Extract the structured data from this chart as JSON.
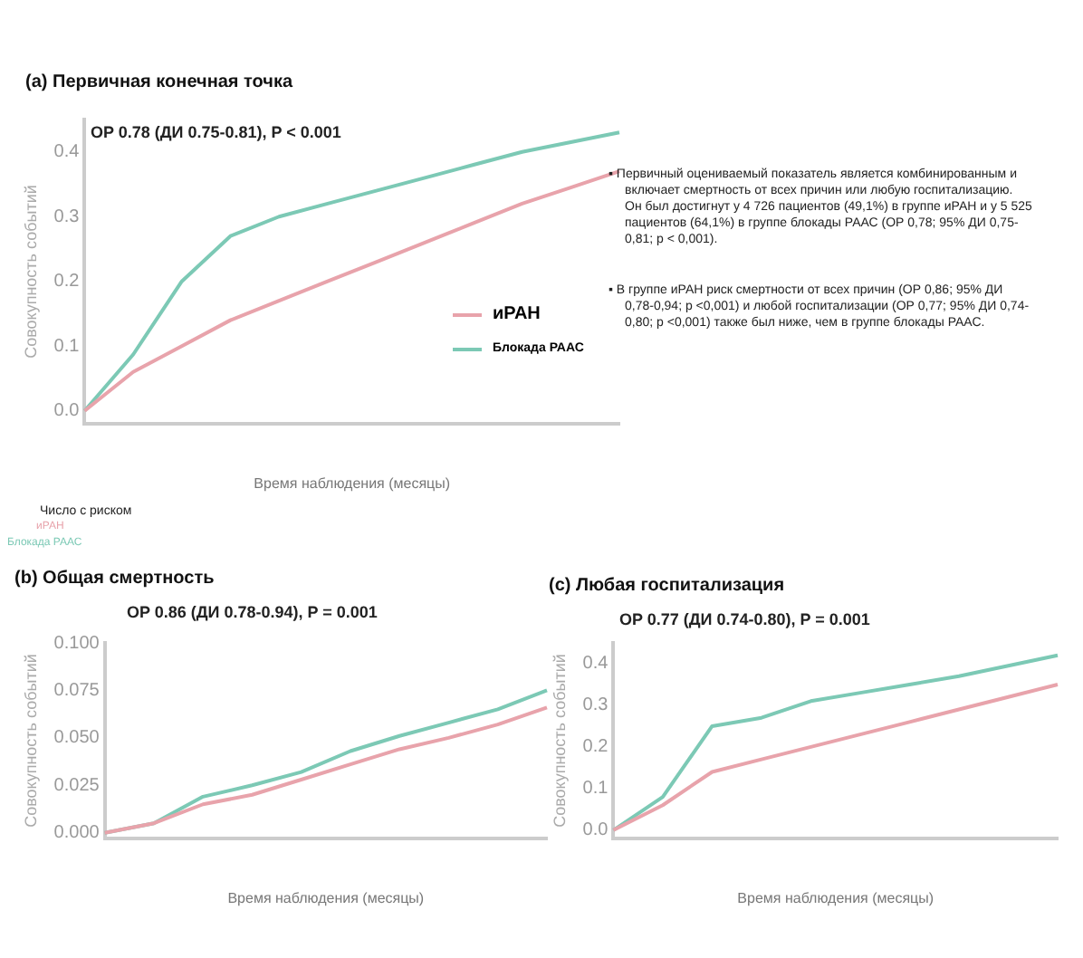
{
  "chart_data": [
    {
      "type": "line",
      "title": "(a)  Первичная конечная точка",
      "xlabel": "Время наблюдения (месяцы)",
      "ylabel": "Совокупность событий",
      "categories": [
        null,
        null,
        null,
        null,
        null,
        null,
        null,
        null,
        null,
        null,
        null,
        null
      ],
      "series": [
        {
          "name": "иРАН",
          "color": "#e8a3ab",
          "values": [
            0,
            0.06,
            0.1,
            0.14,
            0.17,
            0.2,
            0.23,
            0.26,
            0.29,
            0.32,
            0.345,
            0.37
          ]
        },
        {
          "name": "Блокада РААС",
          "color": "#7cc9b5",
          "values": [
            0,
            0.087,
            0.2,
            0.27,
            0.3,
            0.32,
            0.34,
            0.36,
            0.38,
            0.4,
            0.415,
            0.43
          ]
        }
      ],
      "ylim": [
        -0.02,
        0.45
      ],
      "yticks": [
        {
          "value": 0,
          "label": "0.0"
        },
        {
          "value": 0.1,
          "label": "0.1"
        },
        {
          "value": 0.2,
          "label": "0.2"
        },
        {
          "value": 0.3,
          "label": "0.3"
        },
        {
          "value": 0.4,
          "label": "0.4"
        }
      ],
      "grid": false,
      "legend": "right",
      "marker": "none",
      "line_style": "solid",
      "annotations": [
        "OP 0.78 (ДИ 0.75-0.81), P < 0.001",
        "▪ Первичный оцениваемый показатель является комбинированным и включает смертность от всех причин или любую госпитализацию. Он был достигнут у 4 726 пациентов (49,1%) в группе иРАН и у 5 525 пациентов (64,1%) в группе блокады РААС (ОР 0,78; 95% ДИ 0,75-0,81; p < 0,001).",
        "▪ В группе иРАН риск смертности от всех причин (ОР 0,86; 95% ДИ 0,78-0,94; p <0,001) и любой госпитализации (ОР 0,77; 95% ДИ 0,74-0,80; p <0,001) также был ниже, чем в группе блокады РААС.",
        "Число с риском",
        "иРАН",
        "Блокада РААС"
      ]
    },
    {
      "type": "line",
      "title": "(b) Общая смертность",
      "xlabel": "Время наблюдения (месяцы)",
      "ylabel": "Совокупность событий",
      "categories": [
        null,
        null,
        null,
        null,
        null,
        null,
        null,
        null,
        null,
        null
      ],
      "series": [
        {
          "color": "#e8a3ab",
          "values": [
            0,
            0.005,
            0.015,
            0.02,
            0.028,
            0.036,
            0.044,
            0.05,
            0.057,
            0.066
          ]
        },
        {
          "color": "#7cc9b5",
          "values": [
            0,
            0.005,
            0.019,
            0.025,
            0.032,
            0.043,
            0.051,
            0.058,
            0.065,
            0.075
          ]
        }
      ],
      "ylim": [
        -0.003,
        0.1
      ],
      "yticks": [
        {
          "value": 0,
          "label": "0.000"
        },
        {
          "value": 0.025,
          "label": "0.025"
        },
        {
          "value": 0.05,
          "label": "0.050"
        },
        {
          "value": 0.075,
          "label": "0.075"
        },
        {
          "value": 0.1,
          "label": "0.100"
        }
      ],
      "grid": false,
      "marker": "none",
      "line_style": "solid",
      "annotations": [
        "OP 0.86 (ДИ 0.78-0.94), P = 0.001"
      ]
    },
    {
      "type": "line",
      "title": "(c) Любая госпитализация",
      "xlabel": "Время наблюдения (месяцы)",
      "ylabel": "Совокупность событий",
      "categories": [
        null,
        null,
        null,
        null,
        null,
        null,
        null,
        null,
        null,
        null
      ],
      "series": [
        {
          "color": "#e8a3ab",
          "values": [
            0,
            0.06,
            0.14,
            0.17,
            0.2,
            0.23,
            0.26,
            0.29,
            0.32,
            0.35
          ]
        },
        {
          "color": "#7cc9b5",
          "values": [
            0,
            0.08,
            0.25,
            0.27,
            0.31,
            0.33,
            0.35,
            0.37,
            0.395,
            0.42
          ]
        }
      ],
      "ylim": [
        -0.02,
        0.45
      ],
      "yticks": [
        {
          "value": 0,
          "label": "0.0"
        },
        {
          "value": 0.1,
          "label": "0.1"
        },
        {
          "value": 0.2,
          "label": "0.2"
        },
        {
          "value": 0.3,
          "label": "0.3"
        },
        {
          "value": 0.4,
          "label": "0.4"
        }
      ],
      "grid": false,
      "marker": "none",
      "line_style": "solid",
      "annotations": [
        "OP 0.77 (ДИ 0.74-0.80), P = 0.001"
      ]
    }
  ]
}
